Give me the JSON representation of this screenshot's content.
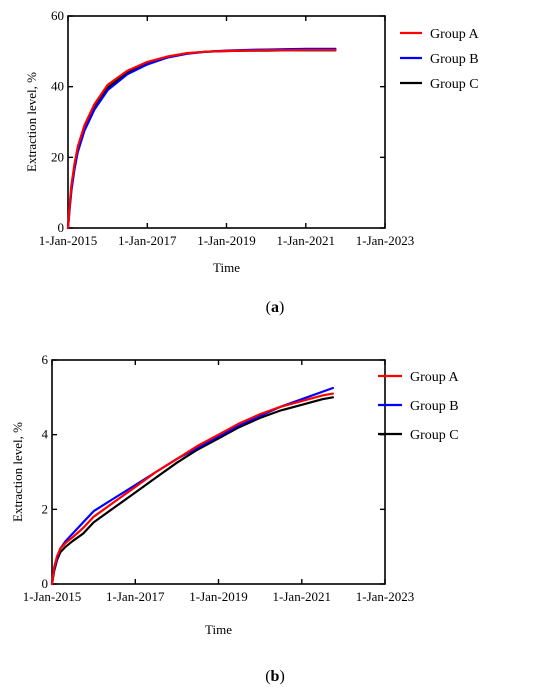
{
  "chart_data": [
    {
      "id": "a",
      "type": "line",
      "caption_letter": "a",
      "xlabel": "Time",
      "ylabel": "Extraction level, %",
      "xlim": [
        "2015-01-01",
        "2023-01-01"
      ],
      "ylim": [
        0,
        60
      ],
      "xticks": [
        "1-Jan-2015",
        "1-Jan-2017",
        "1-Jan-2019",
        "1-Jan-2021",
        "1-Jan-2023"
      ],
      "yticks": [
        "0",
        "20",
        "40",
        "60"
      ],
      "legend_position": "right",
      "series": [
        {
          "name": "Group A",
          "color": "#ff0000",
          "x": [
            "2015-01-01",
            "2015-01-15",
            "2015-02-01",
            "2015-03-01",
            "2015-04-01",
            "2015-06-01",
            "2015-09-01",
            "2016-01-01",
            "2016-07-01",
            "2017-01-01",
            "2017-07-01",
            "2018-01-01",
            "2018-07-01",
            "2019-01-01",
            "2019-07-01",
            "2020-01-01",
            "2020-07-01",
            "2021-01-01",
            "2021-07-01",
            "2021-10-01"
          ],
          "y": [
            0,
            6,
            12,
            18,
            23,
            29,
            35,
            40.5,
            44.5,
            47,
            48.5,
            49.5,
            49.9,
            50.1,
            50.2,
            50.3,
            50.3,
            50.4,
            50.4,
            50.4
          ]
        },
        {
          "name": "Group B",
          "color": "#0000ff",
          "x": [
            "2015-01-01",
            "2015-01-15",
            "2015-02-01",
            "2015-03-01",
            "2015-04-01",
            "2015-06-01",
            "2015-09-01",
            "2016-01-01",
            "2016-07-01",
            "2017-01-01",
            "2017-07-01",
            "2018-01-01",
            "2018-07-01",
            "2019-01-01",
            "2019-07-01",
            "2020-01-01",
            "2020-07-01",
            "2021-01-01",
            "2021-07-01",
            "2021-10-01"
          ],
          "y": [
            0,
            5,
            10.5,
            16.5,
            21.5,
            27.5,
            33.5,
            39,
            43.5,
            46.3,
            48.2,
            49.3,
            49.9,
            50.2,
            50.4,
            50.5,
            50.6,
            50.7,
            50.7,
            50.7
          ]
        },
        {
          "name": "Group C",
          "color": "#000000",
          "x": [
            "2015-01-01",
            "2015-01-15",
            "2015-02-01",
            "2015-03-01",
            "2015-04-01",
            "2015-06-01",
            "2015-09-01",
            "2016-01-01",
            "2016-07-01",
            "2017-01-01",
            "2017-07-01",
            "2018-01-01",
            "2018-07-01",
            "2019-01-01",
            "2019-07-01",
            "2020-01-01",
            "2020-07-01",
            "2021-01-01",
            "2021-07-01",
            "2021-10-01"
          ],
          "y": [
            0,
            5.5,
            11,
            17,
            22,
            28,
            34,
            39.7,
            44,
            46.7,
            48.4,
            49.4,
            49.9,
            50.1,
            50.2,
            50.2,
            50.3,
            50.3,
            50.3,
            50.3
          ]
        }
      ]
    },
    {
      "id": "b",
      "type": "line",
      "caption_letter": "b",
      "xlabel": "Time",
      "ylabel": "Extraction level, %",
      "xlim": [
        "2015-01-01",
        "2023-01-01"
      ],
      "ylim": [
        0,
        6
      ],
      "xticks": [
        "1-Jan-2015",
        "1-Jan-2017",
        "1-Jan-2019",
        "1-Jan-2021",
        "1-Jan-2023"
      ],
      "yticks": [
        "0",
        "2",
        "4",
        "6"
      ],
      "legend_position": "right",
      "series": [
        {
          "name": "Group A",
          "color": "#ff0000",
          "x": [
            "2015-01-01",
            "2015-01-20",
            "2015-02-15",
            "2015-03-15",
            "2015-05-01",
            "2015-07-01",
            "2015-10-01",
            "2016-01-01",
            "2016-07-01",
            "2017-01-01",
            "2017-07-01",
            "2018-01-01",
            "2018-07-01",
            "2019-01-01",
            "2019-07-01",
            "2020-01-01",
            "2020-07-01",
            "2021-01-01",
            "2021-07-01",
            "2021-10-01"
          ],
          "y": [
            0,
            0.45,
            0.75,
            0.95,
            1.1,
            1.25,
            1.5,
            1.8,
            2.2,
            2.6,
            3.0,
            3.35,
            3.7,
            4.0,
            4.3,
            4.55,
            4.75,
            4.9,
            5.05,
            5.1
          ]
        },
        {
          "name": "Group B",
          "color": "#0000ff",
          "x": [
            "2015-01-01",
            "2015-01-20",
            "2015-02-15",
            "2015-03-15",
            "2015-05-01",
            "2015-07-01",
            "2015-10-01",
            "2016-01-01",
            "2016-07-01",
            "2017-01-01",
            "2017-07-01",
            "2018-01-01",
            "2018-07-01",
            "2019-01-01",
            "2019-07-01",
            "2020-01-01",
            "2020-07-01",
            "2021-01-01",
            "2021-07-01",
            "2021-10-01"
          ],
          "y": [
            0,
            0.4,
            0.7,
            0.95,
            1.15,
            1.35,
            1.65,
            1.95,
            2.3,
            2.65,
            3.0,
            3.35,
            3.65,
            3.95,
            4.25,
            4.5,
            4.75,
            4.95,
            5.15,
            5.25
          ]
        },
        {
          "name": "Group C",
          "color": "#000000",
          "x": [
            "2015-01-01",
            "2015-01-20",
            "2015-02-15",
            "2015-03-15",
            "2015-05-01",
            "2015-07-01",
            "2015-10-01",
            "2016-01-01",
            "2016-07-01",
            "2017-01-01",
            "2017-07-01",
            "2018-01-01",
            "2018-07-01",
            "2019-01-01",
            "2019-07-01",
            "2020-01-01",
            "2020-07-01",
            "2021-01-01",
            "2021-07-01",
            "2021-10-01"
          ],
          "y": [
            0,
            0.35,
            0.65,
            0.85,
            1.0,
            1.15,
            1.35,
            1.65,
            2.05,
            2.45,
            2.85,
            3.25,
            3.6,
            3.9,
            4.2,
            4.45,
            4.65,
            4.8,
            4.95,
            5.0
          ]
        }
      ]
    }
  ]
}
